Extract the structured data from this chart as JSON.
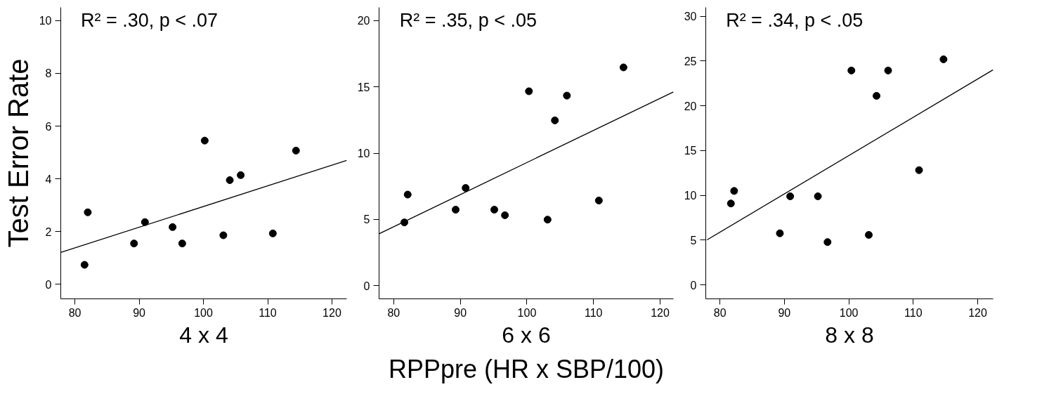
{
  "chart_data": [
    {
      "type": "scatter",
      "xlabel": "4 x 4",
      "ylabel": "Test Error Rate",
      "annotations": [
        "R² = .30, p < .07"
      ],
      "xlim": [
        77.8,
        122.3
      ],
      "ylim": [
        -0.55,
        10.5
      ],
      "xticks": [
        80,
        90,
        100,
        110,
        120
      ],
      "yticks": [
        0,
        2,
        4,
        6,
        8,
        10
      ],
      "grid": false,
      "series": [
        {
          "marker": "circle",
          "color": "#000000",
          "x": [
            81.5,
            82.0,
            89.2,
            90.9,
            95.2,
            96.7,
            100.2,
            103.1,
            104.1,
            105.8,
            110.8,
            114.4
          ],
          "values": [
            0.74,
            2.73,
            1.55,
            2.36,
            2.17,
            1.55,
            5.45,
            1.86,
            3.95,
            4.14,
            1.93,
            5.07
          ]
        },
        {
          "type": "line",
          "color": "#000000",
          "x": [
            77.8,
            122.3
          ],
          "values": [
            1.21,
            4.7
          ]
        }
      ]
    },
    {
      "type": "scatter",
      "xlabel": "6 x 6",
      "annotations": [
        "R² = .35, p < .05",
        "RPPpre (HR x SBP/100)"
      ],
      "xlim": [
        77.8,
        122
      ],
      "ylim": [
        -1.0,
        21
      ],
      "xticks": [
        80,
        90,
        100,
        110,
        120
      ],
      "yticks": [
        0,
        5,
        10,
        15,
        20
      ],
      "grid": false,
      "series": [
        {
          "marker": "circle",
          "color": "#000000",
          "x": [
            81.6,
            82.1,
            89.3,
            90.8,
            95.1,
            96.7,
            100.3,
            103.1,
            104.2,
            106.0,
            110.8,
            114.5
          ],
          "values": [
            4.77,
            6.87,
            5.73,
            7.37,
            5.73,
            5.31,
            14.67,
            4.98,
            12.47,
            14.34,
            6.42,
            16.47
          ]
        },
        {
          "type": "line",
          "color": "#000000",
          "x": [
            77.8,
            122
          ],
          "values": [
            3.91,
            14.62
          ]
        }
      ]
    },
    {
      "type": "scatter",
      "xlabel": "8 x 8",
      "annotations": [
        "R² = .34, p < .05"
      ],
      "xlim": [
        77.8,
        122.4
      ],
      "ylim": [
        -1.55,
        31
      ],
      "xticks": [
        80,
        90,
        100,
        110,
        120
      ],
      "yticks": [
        0,
        5,
        10,
        15,
        20,
        25,
        30
      ],
      "grid": false,
      "series": [
        {
          "marker": "circle",
          "color": "#000000",
          "x": [
            81.7,
            82.2,
            89.3,
            90.9,
            95.2,
            96.7,
            100.4,
            103.1,
            104.3,
            106.1,
            110.9,
            114.7
          ],
          "values": [
            9.1,
            10.5,
            5.77,
            9.9,
            9.9,
            4.79,
            23.95,
            5.59,
            21.12,
            23.95,
            12.82,
            25.2
          ]
        },
        {
          "type": "line",
          "color": "#000000",
          "x": [
            78.0,
            122.4
          ],
          "values": [
            5.04,
            24.03
          ]
        }
      ]
    }
  ]
}
